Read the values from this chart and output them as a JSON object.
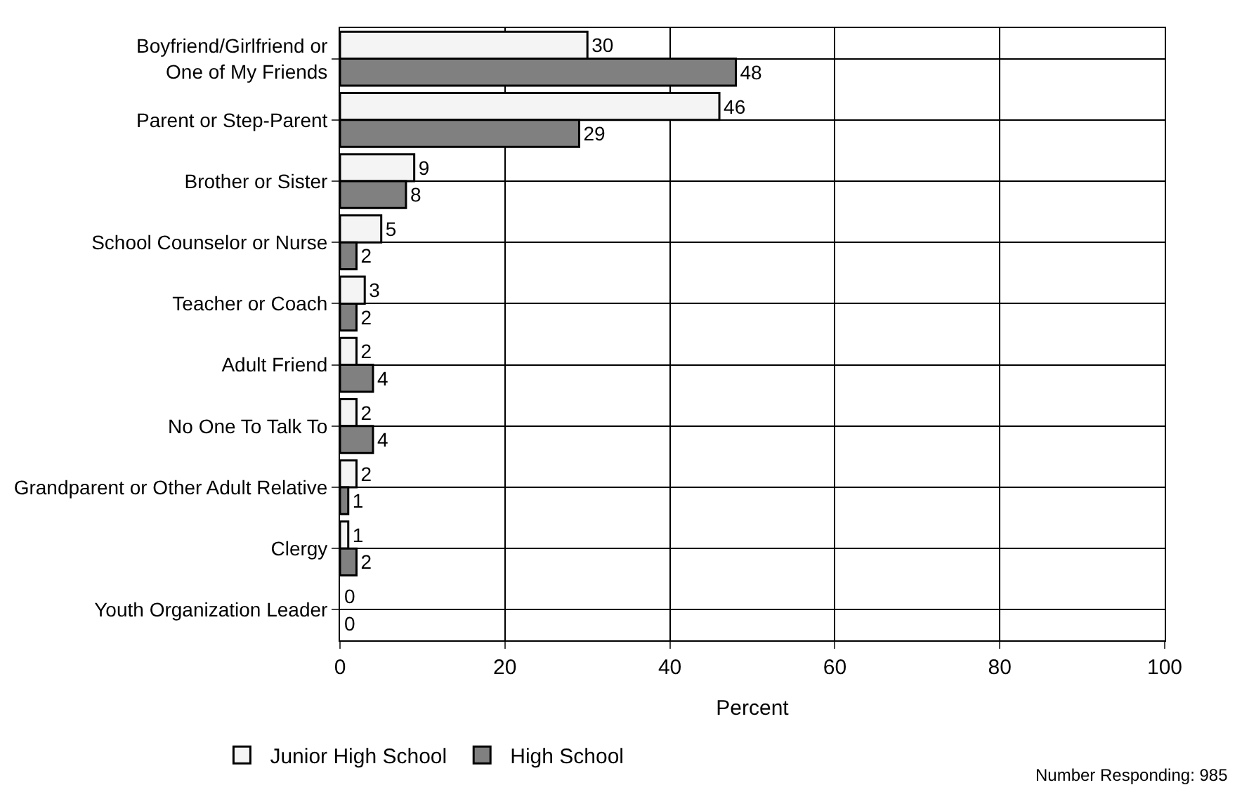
{
  "chart_data": {
    "type": "bar",
    "orientation": "horizontal",
    "xlabel": "Percent",
    "categories": [
      "Boyfriend/Girlfriend or One of My Friends",
      "Parent or Step-Parent",
      "Brother or Sister",
      "School Counselor or Nurse",
      "Teacher or Coach",
      "Adult Friend",
      "No One To Talk To",
      "Grandparent or Other Adult Relative",
      "Clergy",
      "Youth Organization Leader"
    ],
    "series": [
      {
        "name": "Junior High School",
        "color": "#f4f4f4",
        "values": [
          30,
          46,
          9,
          5,
          3,
          2,
          2,
          2,
          1,
          0
        ]
      },
      {
        "name": "High School",
        "color": "#808080",
        "values": [
          48,
          29,
          8,
          2,
          2,
          4,
          4,
          1,
          2,
          0
        ]
      }
    ],
    "xlim": [
      0,
      100
    ],
    "xticks": [
      0,
      20,
      40,
      60,
      80,
      100
    ],
    "grid": true,
    "legend": "bottom",
    "data_labels": true,
    "annotations": [
      "Number Responding: 985"
    ]
  }
}
